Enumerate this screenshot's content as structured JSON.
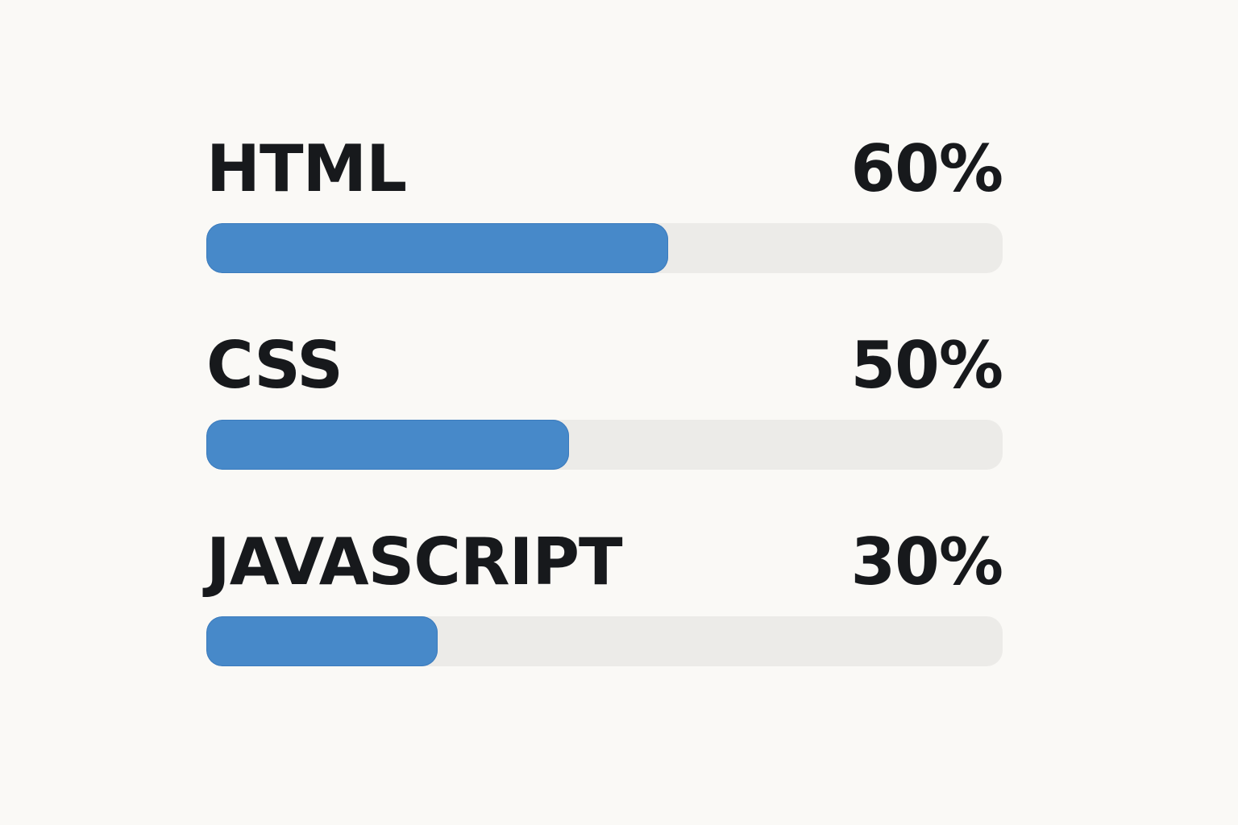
{
  "skills": [
    {
      "name": "HTML",
      "percent_label": "60%",
      "progress": 0.58
    },
    {
      "name": "CSS",
      "percent_label": "50%",
      "progress": 0.455
    },
    {
      "name": "JAVASCRIPT",
      "percent_label": "30%",
      "progress": 0.29
    }
  ],
  "colors": {
    "background": "#faf9f6",
    "text": "#17191c",
    "track": "#ecebe8",
    "fill": "#4789c9"
  }
}
